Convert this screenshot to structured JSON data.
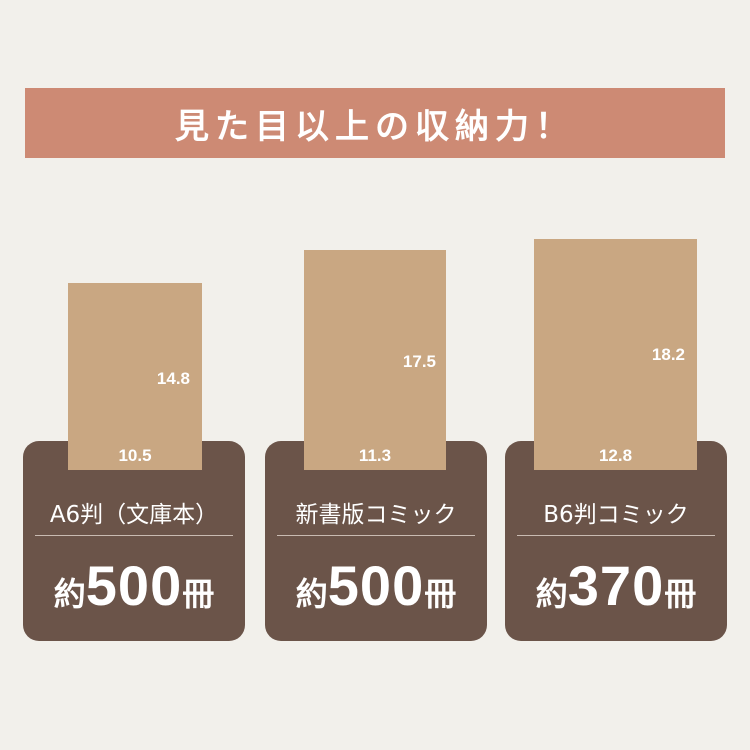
{
  "headline": "見た目以上の収納力！",
  "colors": {
    "background": "#f2f0eb",
    "banner": "#cd8a74",
    "card": "#6b5449",
    "book": "#c9a782"
  },
  "items": [
    {
      "label": "A6判（文庫本）",
      "height": "14.8",
      "width": "10.5",
      "prefix": "約",
      "count": "500",
      "suffix": "冊"
    },
    {
      "label": "新書版コミック",
      "height": "17.5",
      "width": "11.3",
      "prefix": "約",
      "count": "500",
      "suffix": "冊"
    },
    {
      "label": "B6判コミック",
      "height": "18.2",
      "width": "12.8",
      "prefix": "約",
      "count": "370",
      "suffix": "冊"
    }
  ]
}
